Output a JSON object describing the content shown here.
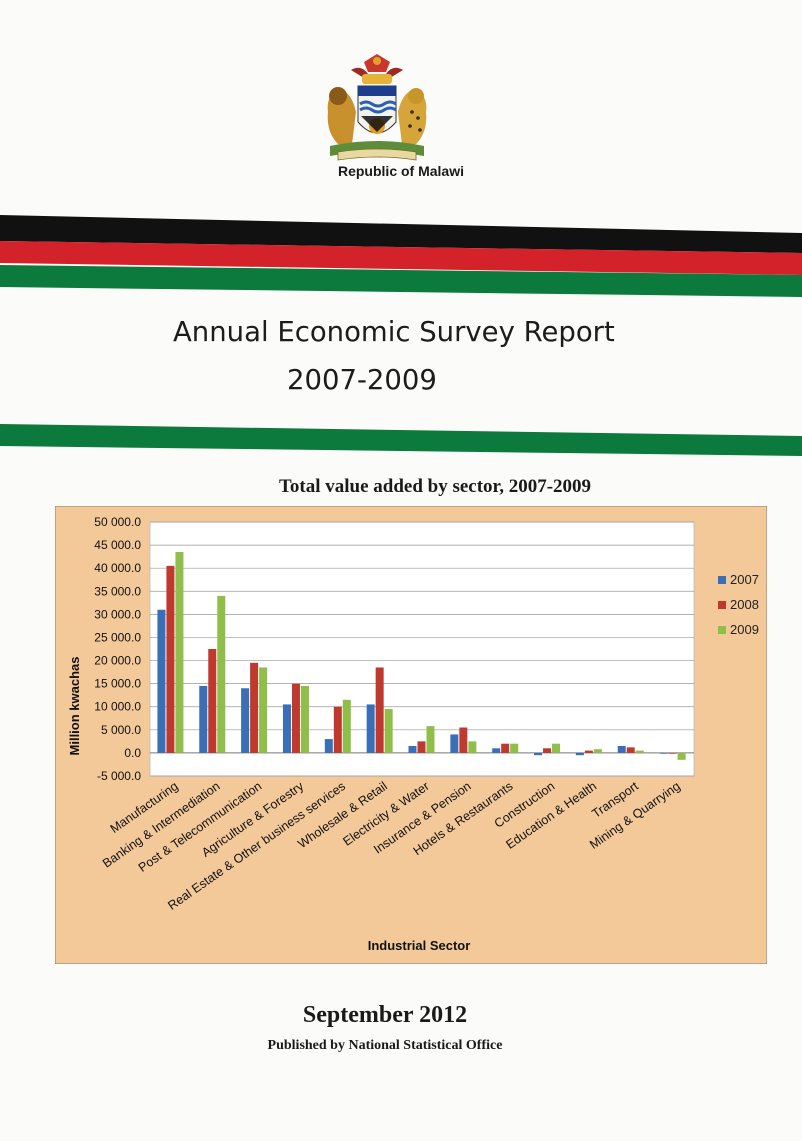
{
  "header": {
    "country": "Republic of Malawi"
  },
  "report": {
    "title": "Annual Economic Survey Report",
    "years": "2007-2009"
  },
  "colors": {
    "black": "#111111",
    "red": "#d3222a",
    "green": "#0c7a3c",
    "chart_bg": "#f3c999"
  },
  "chart_data": {
    "type": "bar",
    "title": "Total value added by sector, 2007-2009",
    "xlabel": "Industrial Sector",
    "ylabel": "Million kwachas",
    "ylim": [
      -5000,
      50000
    ],
    "y_ticks": [
      "50 000.0",
      "45 000.0",
      "40 000.0",
      "35 000.0",
      "30 000.0",
      "25 000.0",
      "20 000.0",
      "15 000.0",
      "10 000.0",
      "5 000.0",
      "0.0",
      "-5 000.0"
    ],
    "legend_position": "right",
    "grid": true,
    "categories": [
      "Manufacturing",
      "Banking & Intermediation",
      "Post & Telecommunication",
      "Agriculture & Forestry",
      "Real Estate & Other business services",
      "Wholesale & Retail",
      "Electricity & Water",
      "Insurance & Pension",
      "Hotels & Restaurants",
      "Construction",
      "Education & Health",
      "Transport",
      "Mining & Quarrying"
    ],
    "series": [
      {
        "name": "2007",
        "color": "#3a6fb7",
        "values": [
          31000,
          14500,
          14000,
          10500,
          3000,
          10500,
          1500,
          4000,
          1000,
          -500,
          -500,
          1500,
          0
        ]
      },
      {
        "name": "2008",
        "color": "#c0392f",
        "values": [
          40500,
          22500,
          19500,
          15000,
          10000,
          18500,
          2500,
          5500,
          2000,
          1000,
          500,
          1200,
          0
        ]
      },
      {
        "name": "2009",
        "color": "#8fbf4a",
        "values": [
          43500,
          34000,
          18500,
          14500,
          11500,
          9500,
          5800,
          2500,
          2000,
          2000,
          800,
          500,
          -1500
        ]
      }
    ]
  },
  "footer": {
    "date": "September 2012",
    "publisher": "Published by National Statistical Office"
  }
}
